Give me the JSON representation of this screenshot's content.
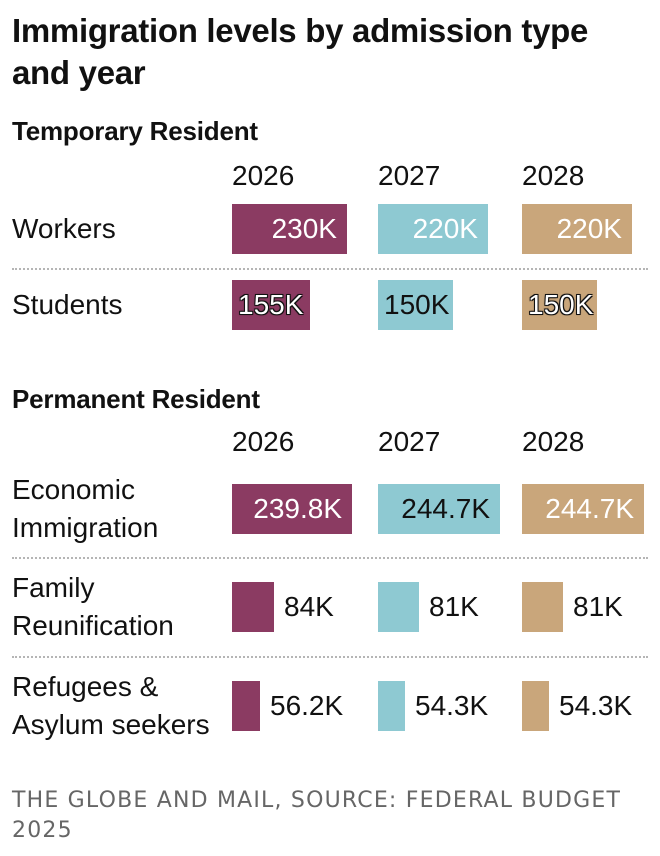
{
  "title": "Immigration levels by admission type and year",
  "source": "THE GLOBE AND MAIL, SOURCE: FEDERAL BUDGET 2025",
  "colors": {
    "2026": "#8b3b62",
    "2027": "#8ec9d2",
    "2028": "#c9a67b"
  },
  "chart_data": [
    {
      "type": "bar",
      "title": "Temporary Resident",
      "years": [
        "2026",
        "2027",
        "2028"
      ],
      "categories": [
        "Workers",
        "Students"
      ],
      "series": [
        {
          "name": "2026",
          "values": [
            230,
            155
          ],
          "labels": [
            "230K",
            "155K"
          ]
        },
        {
          "name": "2027",
          "values": [
            220,
            150
          ],
          "labels": [
            "220K",
            "150K"
          ]
        },
        {
          "name": "2028",
          "values": [
            220,
            150
          ],
          "labels": [
            "220K",
            "150K"
          ]
        }
      ],
      "unit": "thousands"
    },
    {
      "type": "bar",
      "title": "Permanent Resident",
      "years": [
        "2026",
        "2027",
        "2028"
      ],
      "categories": [
        [
          "Economic",
          "Immigration"
        ],
        [
          "Family",
          "Reunification"
        ],
        [
          "Refugees &",
          "Asylum seekers"
        ]
      ],
      "series": [
        {
          "name": "2026",
          "values": [
            239.8,
            84,
            56.2
          ],
          "labels": [
            "239.8K",
            "84K",
            "56.2K"
          ]
        },
        {
          "name": "2027",
          "values": [
            244.7,
            81,
            54.3
          ],
          "labels": [
            "244.7K",
            "81K",
            "54.3K"
          ]
        },
        {
          "name": "2028",
          "values": [
            244.7,
            81,
            54.3
          ],
          "labels": [
            "244.7K",
            "81K",
            "54.3K"
          ]
        }
      ],
      "unit": "thousands"
    }
  ]
}
